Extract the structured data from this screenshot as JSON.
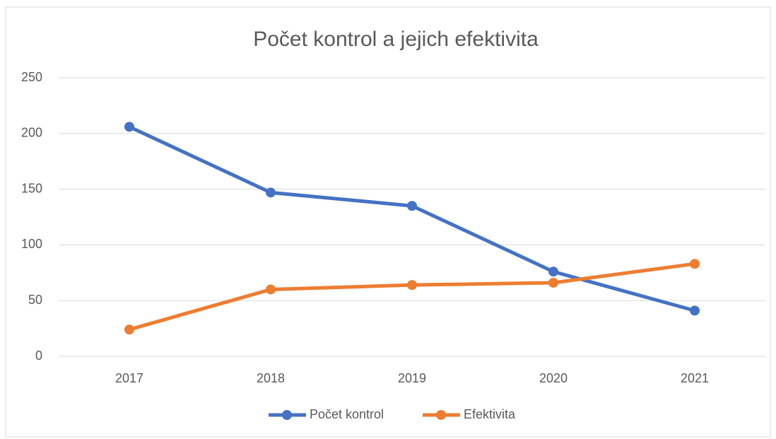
{
  "chart_data": {
    "type": "line",
    "title": "Počet kontrol a jejich efektivita",
    "categories": [
      "2017",
      "2018",
      "2019",
      "2020",
      "2021"
    ],
    "series": [
      {
        "name": "Počet kontrol",
        "color": "#4472c4",
        "values": [
          206,
          147,
          135,
          76,
          41
        ]
      },
      {
        "name": "Efektivita",
        "color": "#ed7d31",
        "values": [
          24,
          60,
          64,
          66,
          83
        ]
      }
    ],
    "ylim": [
      0,
      250
    ],
    "yticks": [
      0,
      50,
      100,
      150,
      200,
      250
    ],
    "grid": true,
    "legend": "bottom"
  }
}
